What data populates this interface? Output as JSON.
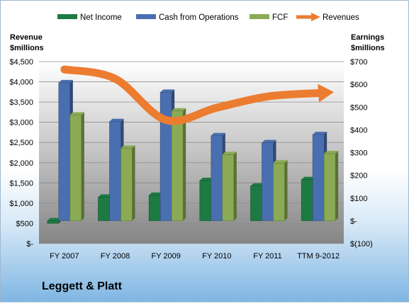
{
  "chart_data": {
    "type": "bar",
    "categories": [
      "FY 2007",
      "FY 2008",
      "FY 2009",
      "FY 2010",
      "FY 2011",
      "TTM 9-2012"
    ],
    "series": [
      {
        "name": "Net Income",
        "axis": "right",
        "color": "#1e7a43",
        "values": [
          -11,
          104,
          112,
          177,
          153,
          181
        ]
      },
      {
        "name": "Cash from Operations",
        "axis": "right",
        "color": "#4a6fb0",
        "values": [
          607,
          436,
          565,
          374,
          343,
          379
        ]
      },
      {
        "name": "FCF",
        "axis": "right",
        "color": "#8aab54",
        "values": [
          465,
          319,
          483,
          291,
          254,
          295
        ]
      },
      {
        "name": "Revenues",
        "axis": "left",
        "type": "line",
        "color": "#ec7c30",
        "values": [
          4306,
          4076,
          3055,
          3359,
          3637,
          3720
        ]
      }
    ],
    "left_axis": {
      "title_line1": "Revenue",
      "title_line2": "$millions",
      "range": [
        0,
        4500
      ],
      "ticks": [
        "$-",
        "$500",
        "$1,000",
        "$1,500",
        "$2,000",
        "$2,500",
        "$3,000",
        "$3,500",
        "$4,000",
        "$4,500"
      ]
    },
    "right_axis": {
      "title_line1": "Earnings",
      "title_line2": "$millions",
      "range": [
        -100,
        700
      ],
      "ticks": [
        "$(100)",
        "$-",
        "$100",
        "$200",
        "$300",
        "$400",
        "$500",
        "$600",
        "$700"
      ]
    },
    "grid": true,
    "legend_position": "top",
    "company": "Leggett & Platt"
  }
}
